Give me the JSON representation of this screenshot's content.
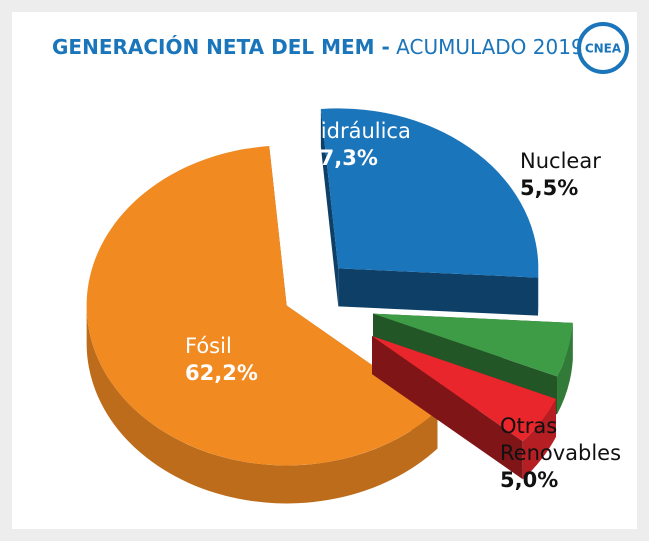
{
  "chart_data": {
    "type": "pie",
    "title": "GENERACIÓN NETA DEL MEM -",
    "subtitle": "ACUMULADO 2019",
    "logo": "CNEA",
    "categories": [
      "Hidráulica",
      "Nuclear",
      "Otras Renovables",
      "Fósil"
    ],
    "values": [
      27.3,
      5.5,
      5.0,
      62.2
    ],
    "value_labels": [
      "27,3%",
      "5,5%",
      "5,0%",
      "62,2%"
    ],
    "colors": [
      "#1a75bb",
      "#3f9c46",
      "#e8262b",
      "#f28a22"
    ]
  }
}
